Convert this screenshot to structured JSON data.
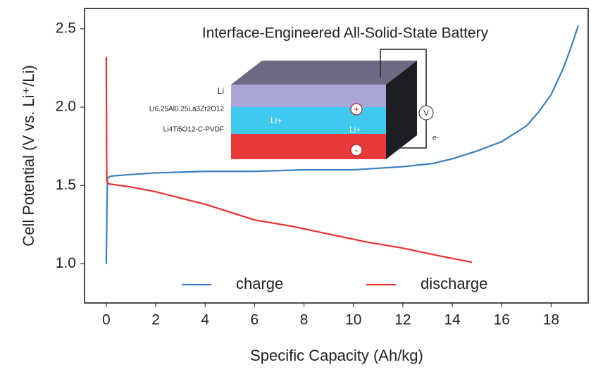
{
  "chart_data": {
    "type": "line",
    "title": "Interface-Engineered All-Solid-State Battery",
    "x_label": "Specific Capacity (Ah/kg)",
    "y_label": "Cell Potential (V vs. Li⁺/Li)",
    "xlim": [
      -0.88,
      19.5
    ],
    "ylim": [
      0.75,
      2.63
    ],
    "xticks": [
      0,
      2,
      4,
      6,
      8,
      10,
      12,
      14,
      16,
      18
    ],
    "yticks": [
      {
        "value": 1.0,
        "label": "1.0"
      },
      1.5,
      {
        "value": 2.0,
        "label": "2.0"
      },
      2.5
    ],
    "grid": false,
    "legend": "bottom",
    "series": [
      {
        "name": "charge",
        "color": "#3a7fc1",
        "x": [
          0,
          0.03,
          0.05,
          0.2,
          1,
          2,
          4,
          6,
          8,
          10,
          12,
          13.2,
          14,
          15,
          16,
          17,
          17.5,
          18,
          18.5,
          18.8,
          19.1
        ],
        "values": [
          1.0,
          1.4,
          1.55,
          1.56,
          1.57,
          1.58,
          1.59,
          1.59,
          1.6,
          1.6,
          1.62,
          1.64,
          1.67,
          1.72,
          1.78,
          1.88,
          1.97,
          2.08,
          2.25,
          2.38,
          2.52
        ]
      },
      {
        "name": "discharge",
        "color": "#e8312f",
        "x": [
          0,
          0.02,
          0.05,
          0.1,
          1,
          2,
          3,
          4,
          5,
          6,
          7.5,
          9,
          10.5,
          12,
          13.5,
          14.8
        ],
        "values": [
          2.32,
          1.53,
          1.52,
          1.51,
          1.49,
          1.46,
          1.42,
          1.38,
          1.33,
          1.28,
          1.24,
          1.19,
          1.14,
          1.1,
          1.05,
          1.01
        ]
      }
    ],
    "annotations": [
      "Li",
      "Li6.25Al0.25La3Zr2O12",
      "Li4Ti5O12-C-PVDF",
      "Li+",
      "Li+",
      "V",
      "e-",
      "+",
      "-"
    ]
  }
}
